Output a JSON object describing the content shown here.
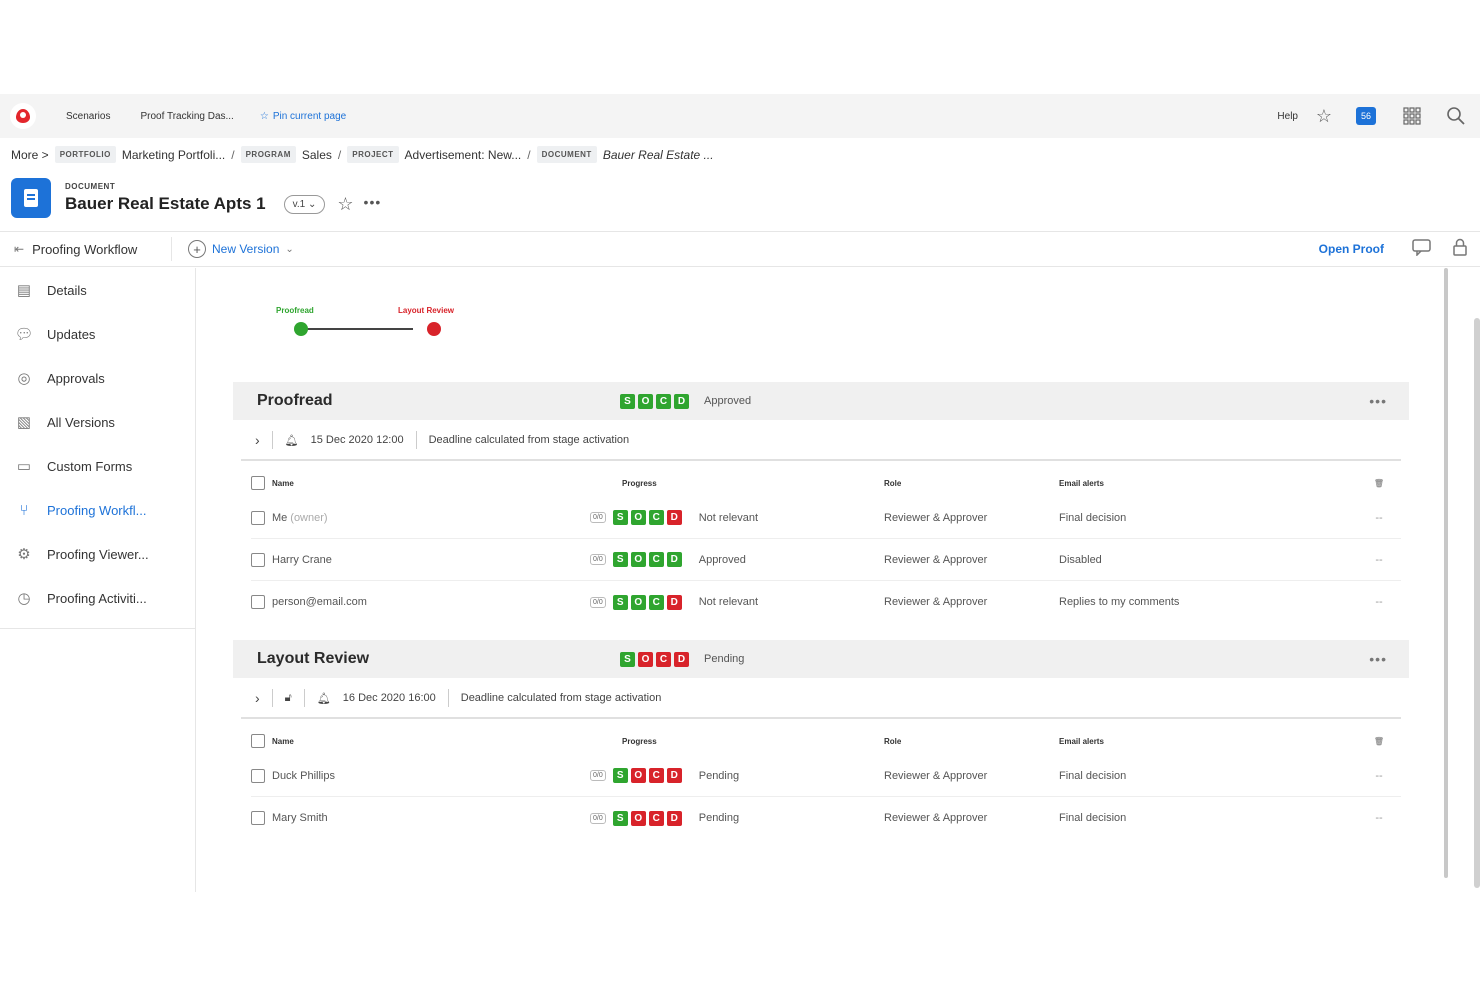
{
  "topbar": {
    "nav": [
      "Scenarios",
      "Proof Tracking Das..."
    ],
    "pin_label": "Pin current page",
    "help_label": "Help",
    "notif_count": "56"
  },
  "breadcrumb": {
    "more": "More",
    "items": [
      {
        "chip": "PORTFOLIO",
        "label": "Marketing Portfoli..."
      },
      {
        "chip": "PROGRAM",
        "label": "Sales"
      },
      {
        "chip": "PROJECT",
        "label": "Advertisement: New..."
      },
      {
        "chip": "DOCUMENT",
        "label": "Bauer Real Estate ..."
      }
    ]
  },
  "document": {
    "kind": "DOCUMENT",
    "title": "Bauer Real Estate Apts 1",
    "version": "v.1"
  },
  "toolbar": {
    "workflow_label": "Proofing Workflow",
    "new_version_label": "New Version",
    "open_proof_label": "Open Proof"
  },
  "sidebar": {
    "items": [
      {
        "label": "Details",
        "icon": "details-icon"
      },
      {
        "label": "Updates",
        "icon": "updates-icon"
      },
      {
        "label": "Approvals",
        "icon": "approvals-icon"
      },
      {
        "label": "All Versions",
        "icon": "versions-icon"
      },
      {
        "label": "Custom Forms",
        "icon": "forms-icon"
      },
      {
        "label": "Proofing Workfl...",
        "icon": "workflow-icon",
        "active": true
      },
      {
        "label": "Proofing Viewer...",
        "icon": "gear-icon"
      },
      {
        "label": "Proofing Activiti...",
        "icon": "activity-icon"
      }
    ]
  },
  "timeline": {
    "stages": [
      {
        "label": "Proofread",
        "color": "#2fa52f"
      },
      {
        "label": "Layout Review",
        "color": "#d8232a"
      }
    ]
  },
  "table_headers": {
    "name": "Name",
    "progress": "Progress",
    "role": "Role",
    "email": "Email alerts"
  },
  "stages": [
    {
      "name": "Proofread",
      "status": "Approved",
      "deadline": "15 Dec 2020 12:00",
      "deadline_note": "Deadline calculated from stage activation",
      "rows": [
        {
          "name": "Me",
          "owner": "(owner)",
          "counter": "0/0",
          "status": "Not relevant",
          "role": "Reviewer & Approver",
          "email": "Final decision"
        },
        {
          "name": "Harry Crane",
          "counter": "0/0",
          "status": "Approved",
          "role": "Reviewer & Approver",
          "email": "Disabled"
        },
        {
          "name": "person@email.com",
          "counter": "0/0",
          "status": "Not relevant",
          "role": "Reviewer & Approver",
          "email": "Replies to my comments"
        }
      ]
    },
    {
      "name": "Layout Review",
      "status": "Pending",
      "deadline": "16 Dec 2020 16:00",
      "deadline_note": "Deadline calculated from stage activation",
      "rows": [
        {
          "name": "Duck Phillips",
          "counter": "0/0",
          "status": "Pending",
          "role": "Reviewer & Approver",
          "email": "Final decision"
        },
        {
          "name": "Mary Smith",
          "counter": "0/0",
          "status": "Pending",
          "role": "Reviewer & Approver",
          "email": "Final decision"
        }
      ]
    }
  ],
  "row_action": "--",
  "colors": {
    "accent": "#1d72d8",
    "approved": "#2fa52f",
    "rejected": "#d8232a"
  }
}
